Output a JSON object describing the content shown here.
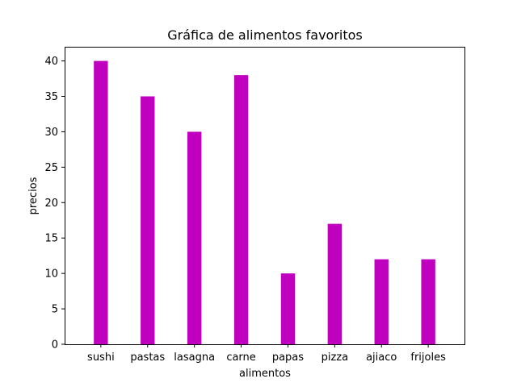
{
  "chart_data": {
    "type": "bar",
    "title": "Gráfica  de alimentos favoritos",
    "xlabel": "alimentos",
    "ylabel": "precios",
    "categories": [
      "sushi",
      "pastas",
      "lasagna",
      "carne",
      "papas",
      "pizza",
      "ajiaco",
      "frijoles"
    ],
    "values": [
      40,
      35,
      30,
      38,
      10,
      17,
      12,
      12
    ],
    "ylim": [
      0,
      42
    ],
    "yticks": [
      0,
      5,
      10,
      15,
      20,
      25,
      30,
      35,
      40
    ],
    "bar_color": "#bf00bf",
    "grid": false,
    "legend": "none"
  }
}
